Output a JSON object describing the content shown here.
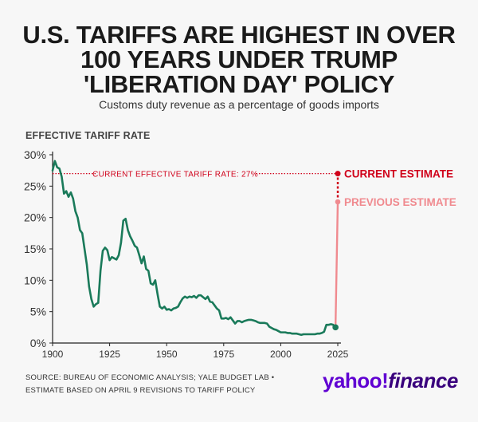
{
  "header": {
    "title_lines": [
      "U.S. TARIFFS ARE HIGHEST IN OVER",
      "100 YEARS UNDER TRUMP",
      "'LIBERATION DAY' POLICY"
    ],
    "subtitle": "Customs duty revenue as a percentage of goods imports"
  },
  "chart_data": {
    "type": "line",
    "ylabel": "EFFECTIVE TARIFF RATE",
    "xlabel": "",
    "xlim": [
      1900,
      2025
    ],
    "ylim": [
      0,
      30
    ],
    "x_ticks": [
      "1900",
      "1925",
      "1950",
      "1975",
      "2000",
      "2025"
    ],
    "y_ticks": [
      "0%",
      "5%",
      "10%",
      "15%",
      "20%",
      "25%",
      "30%"
    ],
    "series": [
      {
        "color": "#1a7a5a",
        "x": [
          1900,
          1901,
          1902,
          1903,
          1904,
          1905,
          1906,
          1907,
          1908,
          1909,
          1910,
          1911,
          1912,
          1913,
          1914,
          1915,
          1916,
          1917,
          1918,
          1919,
          1920,
          1921,
          1922,
          1923,
          1924,
          1925,
          1926,
          1927,
          1928,
          1929,
          1930,
          1931,
          1932,
          1933,
          1934,
          1935,
          1936,
          1937,
          1938,
          1939,
          1940,
          1941,
          1942,
          1943,
          1944,
          1945,
          1946,
          1947,
          1948,
          1949,
          1950,
          1951,
          1952,
          1953,
          1954,
          1955,
          1956,
          1957,
          1958,
          1959,
          1960,
          1961,
          1962,
          1963,
          1964,
          1965,
          1966,
          1967,
          1968,
          1969,
          1970,
          1971,
          1972,
          1973,
          1974,
          1975,
          1976,
          1977,
          1978,
          1979,
          1980,
          1981,
          1982,
          1983,
          1984,
          1985,
          1986,
          1987,
          1988,
          1989,
          1990,
          1991,
          1992,
          1993,
          1994,
          1995,
          1996,
          1997,
          1998,
          1999,
          2000,
          2001,
          2002,
          2003,
          2004,
          2005,
          2006,
          2007,
          2008,
          2009,
          2010,
          2011,
          2012,
          2013,
          2014,
          2015,
          2016,
          2017,
          2018,
          2019,
          2020,
          2021,
          2022,
          2023,
          2024
        ],
        "y": [
          27.5,
          29.0,
          28.0,
          27.8,
          26.5,
          23.8,
          24.2,
          23.3,
          24.0,
          23.0,
          21.0,
          20.0,
          18.0,
          17.5,
          15.0,
          12.5,
          9.0,
          7.0,
          5.8,
          6.2,
          6.4,
          11.5,
          14.7,
          15.2,
          14.8,
          13.2,
          13.7,
          13.5,
          13.3,
          14.0,
          16.0,
          19.5,
          19.8,
          18.0,
          17.0,
          16.3,
          15.5,
          15.2,
          14.0,
          12.7,
          13.8,
          11.8,
          11.5,
          9.5,
          9.3,
          10.0,
          7.8,
          5.8,
          5.5,
          5.8,
          5.3,
          5.4,
          5.2,
          5.5,
          5.6,
          5.8,
          6.5,
          7.1,
          7.4,
          7.2,
          7.4,
          7.3,
          7.5,
          7.2,
          7.6,
          7.6,
          7.3,
          7.0,
          7.4,
          6.6,
          6.5,
          6.0,
          5.5,
          5.2,
          3.9,
          3.9,
          4.0,
          3.8,
          4.1,
          3.6,
          3.1,
          3.5,
          3.5,
          3.3,
          3.5,
          3.6,
          3.7,
          3.7,
          3.6,
          3.5,
          3.3,
          3.2,
          3.2,
          3.2,
          3.1,
          2.6,
          2.4,
          2.2,
          2.1,
          1.9,
          1.7,
          1.7,
          1.7,
          1.6,
          1.6,
          1.5,
          1.5,
          1.5,
          1.4,
          1.3,
          1.4,
          1.4,
          1.4,
          1.4,
          1.4,
          1.4,
          1.5,
          1.5,
          1.6,
          1.8,
          2.9,
          2.9,
          3.0,
          2.9,
          2.5
        ]
      }
    ],
    "reference_line": {
      "value": 27,
      "label": "CURRENT EFFECTIVE TARIFF RATE: 27%",
      "color": "#d0021b"
    },
    "annotations": [
      {
        "label": "CURRENT ESTIMATE",
        "x": 2025,
        "y": 27,
        "color": "#d0021b"
      },
      {
        "label": "PREVIOUS ESTIMATE",
        "x": 2025,
        "y": 22.5,
        "color": "#f08a8f"
      }
    ],
    "grid": false
  },
  "footer": {
    "source_lines": [
      "SOURCE: BUREAU OF ECONOMIC ANALYSIS; YALE BUDGET LAB •",
      "ESTIMATE BASED ON APRIL 9 REVISIONS TO TARIFF POLICY"
    ],
    "logo_yahoo": "yahoo",
    "logo_slash": "!",
    "logo_finance": "finance"
  }
}
